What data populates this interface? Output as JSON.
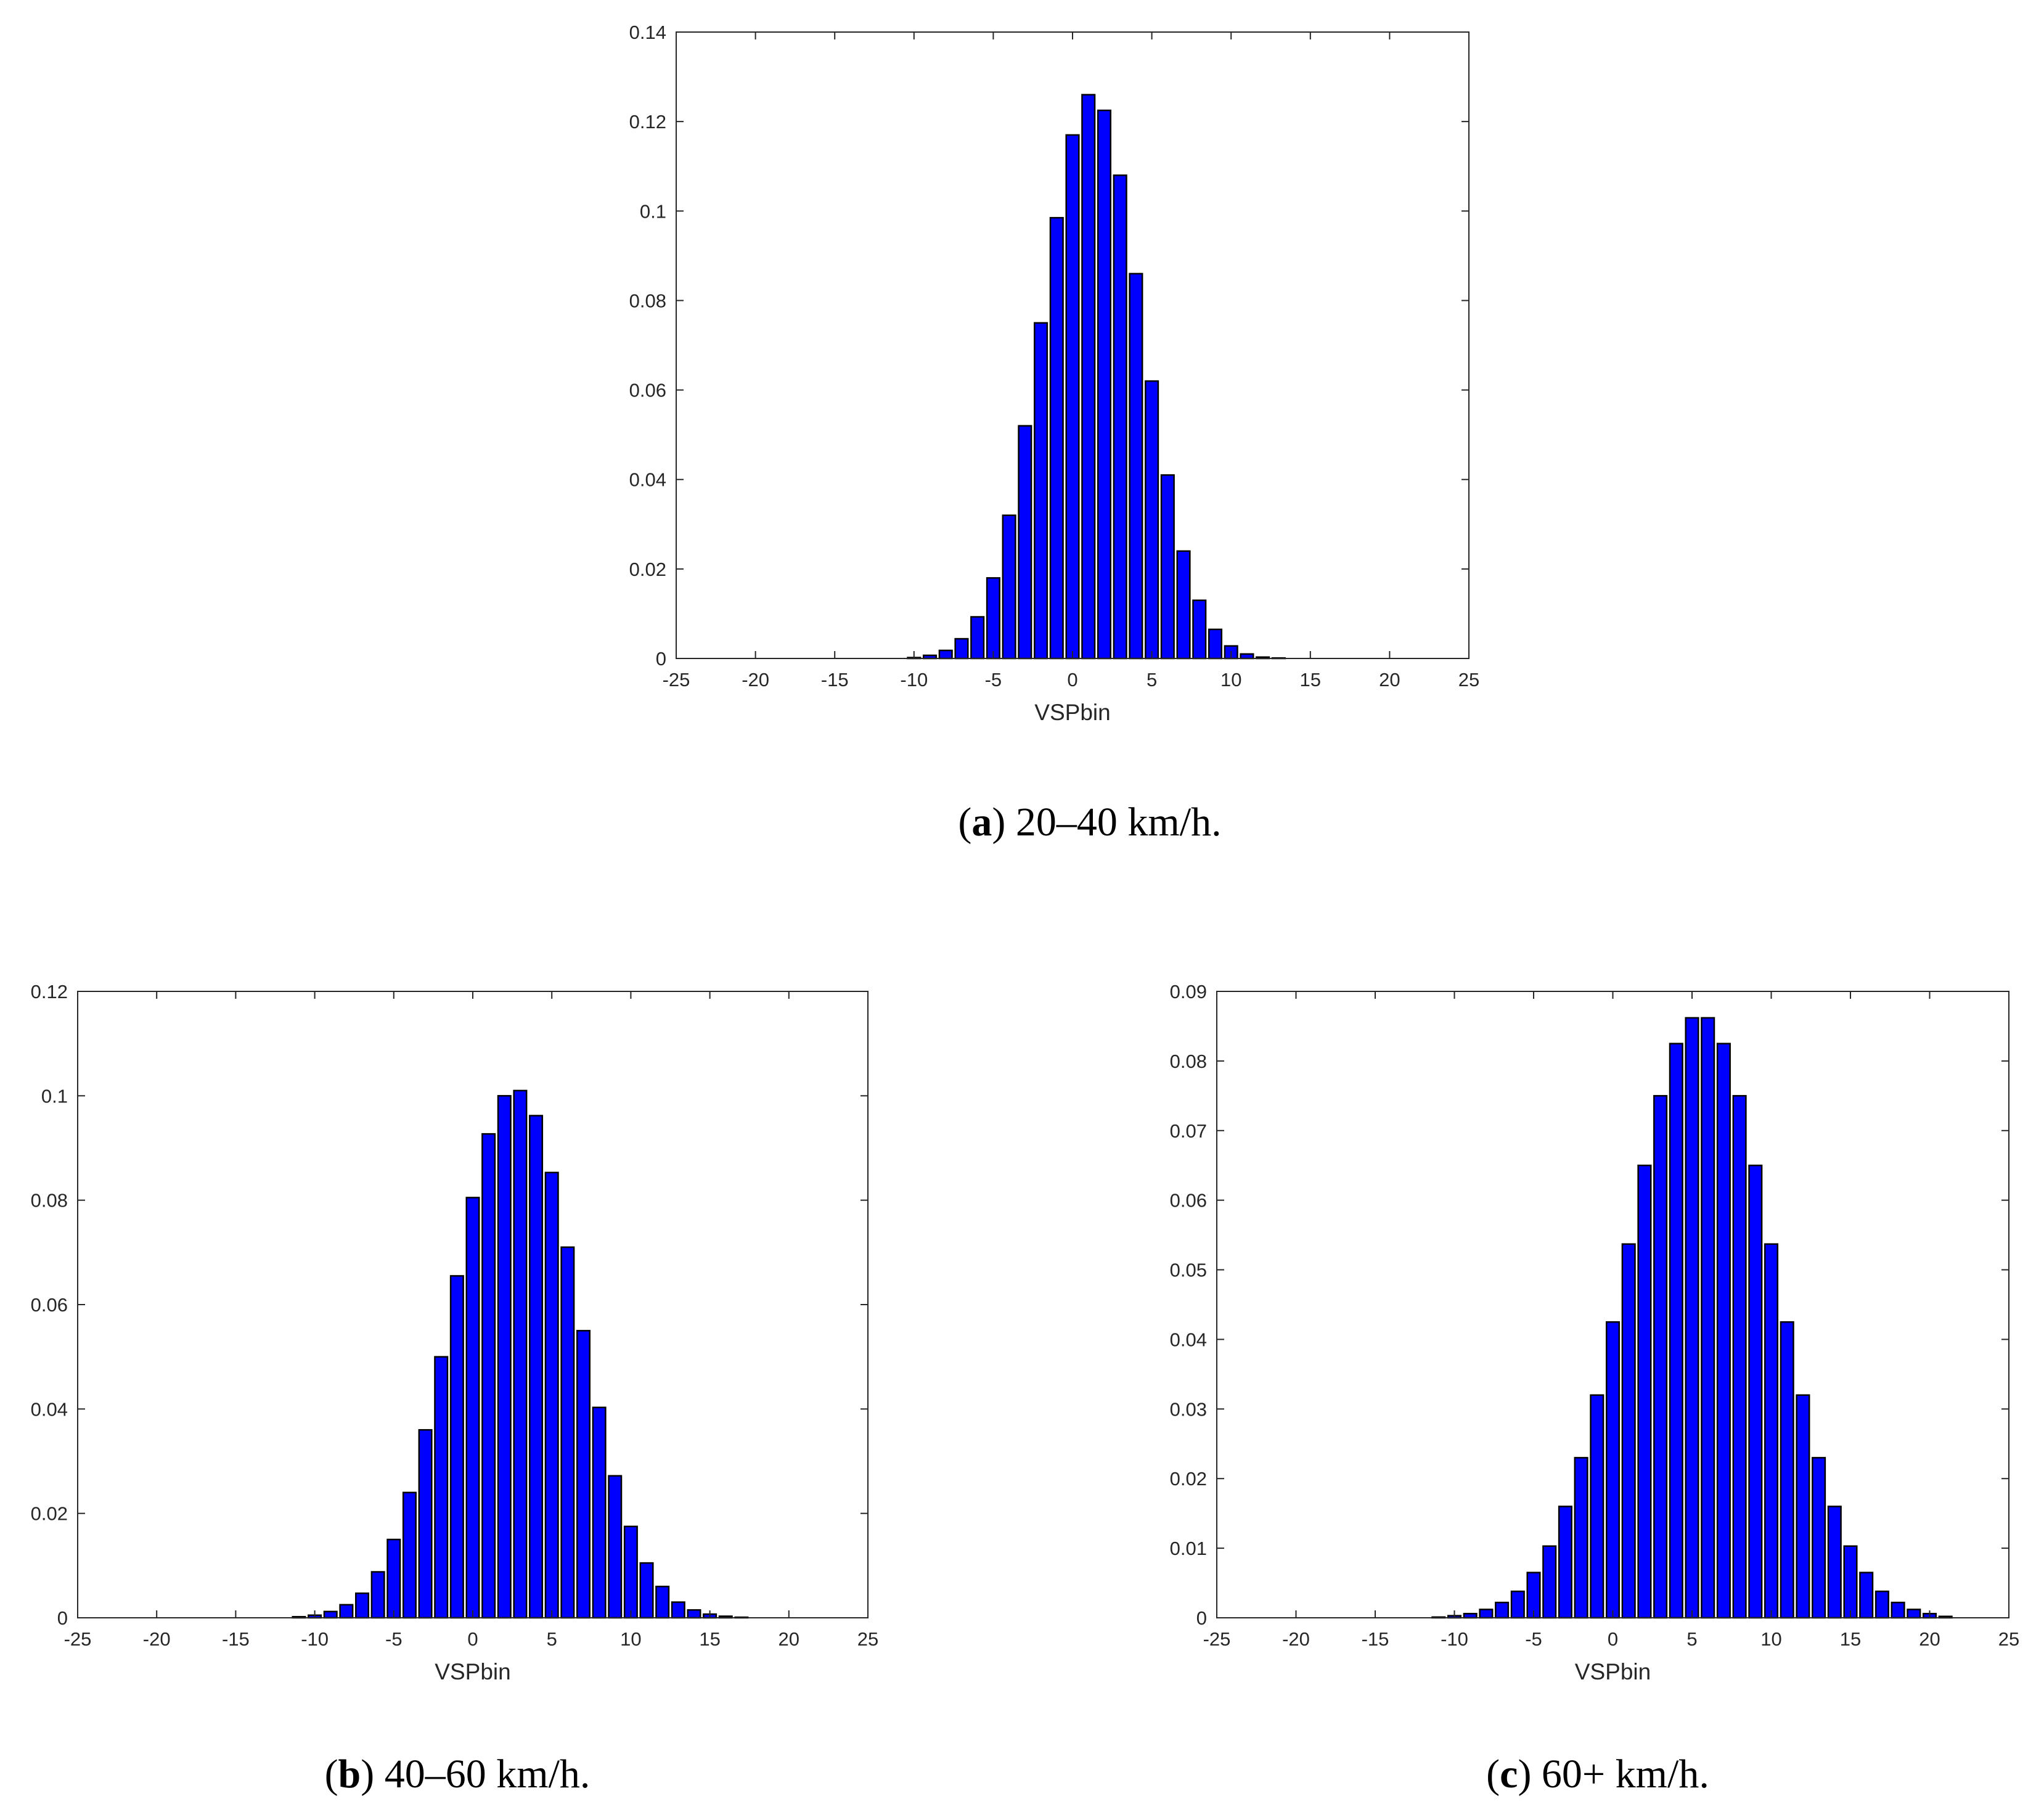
{
  "figure": {
    "panels": [
      {
        "caption": {
          "letter": "a",
          "text": "20–40 km/h."
        }
      },
      {
        "caption": {
          "letter": "b",
          "text": "40–60 km/h."
        }
      },
      {
        "caption": {
          "letter": "c",
          "text": "60+ km/h."
        }
      }
    ]
  },
  "colors": {
    "bar_fill": "#0000ff",
    "bar_edge": "#000000",
    "axes": "#262626",
    "background": "#ffffff"
  },
  "chart_data": [
    {
      "type": "bar",
      "title": "",
      "xlabel": "VSPbin",
      "ylabel": "",
      "xlim": [
        -25,
        25
      ],
      "ylim": [
        0,
        0.14
      ],
      "xticks": [
        -25,
        -20,
        -15,
        -10,
        -5,
        0,
        5,
        10,
        15,
        20,
        25
      ],
      "xtick_labels": [
        "-25",
        "-20",
        "-15",
        "-10",
        "-5",
        "0",
        "5",
        "10",
        "15",
        "20",
        "25"
      ],
      "yticks": [
        0,
        0.02,
        0.04,
        0.06,
        0.08,
        0.1,
        0.12,
        0.14
      ],
      "ytick_labels": [
        "0",
        "0.02",
        "0.04",
        "0.06",
        "0.08",
        "0.1",
        "0.12",
        "0.14"
      ],
      "grid": false,
      "legend": "none",
      "x": [
        -20,
        -19,
        -18,
        -17,
        -16,
        -15,
        -14,
        -13,
        -12,
        -11,
        -10,
        -9,
        -8,
        -7,
        -6,
        -5,
        -4,
        -3,
        -2,
        -1,
        0,
        1,
        2,
        3,
        4,
        5,
        6,
        7,
        8,
        9,
        10,
        11,
        12,
        13,
        14,
        15,
        16,
        17,
        18,
        19,
        20
      ],
      "values": [
        0,
        0,
        0,
        0,
        0,
        0,
        0,
        0,
        0,
        0,
        0.0002,
        0.0007,
        0.0018,
        0.0044,
        0.0093,
        0.018,
        0.032,
        0.052,
        0.075,
        0.0985,
        0.117,
        0.126,
        0.1225,
        0.108,
        0.086,
        0.062,
        0.041,
        0.024,
        0.013,
        0.0065,
        0.0028,
        0.001,
        0.0003,
        0.0001,
        0,
        0,
        0,
        0,
        0,
        0,
        0
      ]
    },
    {
      "type": "bar",
      "title": "",
      "xlabel": "VSPbin",
      "ylabel": "",
      "xlim": [
        -25,
        25
      ],
      "ylim": [
        0,
        0.12
      ],
      "xticks": [
        -25,
        -20,
        -15,
        -10,
        -5,
        0,
        5,
        10,
        15,
        20,
        25
      ],
      "xtick_labels": [
        "-25",
        "-20",
        "-15",
        "-10",
        "-5",
        "0",
        "5",
        "10",
        "15",
        "20",
        "25"
      ],
      "yticks": [
        0,
        0.02,
        0.04,
        0.06,
        0.08,
        0.1,
        0.12
      ],
      "ytick_labels": [
        "0",
        "0.02",
        "0.04",
        "0.06",
        "0.08",
        "0.1",
        "0.12"
      ],
      "grid": false,
      "legend": "none",
      "x": [
        -20,
        -19,
        -18,
        -17,
        -16,
        -15,
        -14,
        -13,
        -12,
        -11,
        -10,
        -9,
        -8,
        -7,
        -6,
        -5,
        -4,
        -3,
        -2,
        -1,
        0,
        1,
        2,
        3,
        4,
        5,
        6,
        7,
        8,
        9,
        10,
        11,
        12,
        13,
        14,
        15,
        16,
        17,
        18,
        19,
        20
      ],
      "values": [
        0,
        0,
        0,
        0,
        0,
        0,
        0,
        0,
        0,
        0.0002,
        0.0005,
        0.0012,
        0.0025,
        0.0047,
        0.0088,
        0.015,
        0.024,
        0.036,
        0.05,
        0.0655,
        0.0805,
        0.0927,
        0.1,
        0.101,
        0.0962,
        0.0853,
        0.071,
        0.055,
        0.0403,
        0.0272,
        0.0175,
        0.0105,
        0.006,
        0.003,
        0.0015,
        0.0007,
        0.0003,
        0.0001,
        0,
        0,
        0
      ]
    },
    {
      "type": "bar",
      "title": "",
      "xlabel": "VSPbin",
      "ylabel": "",
      "xlim": [
        -25,
        25
      ],
      "ylim": [
        0,
        0.09
      ],
      "xticks": [
        -25,
        -20,
        -15,
        -10,
        -5,
        0,
        5,
        10,
        15,
        20,
        25
      ],
      "xtick_labels": [
        "-25",
        "-20",
        "-15",
        "-10",
        "-5",
        "0",
        "5",
        "10",
        "15",
        "20",
        "25"
      ],
      "yticks": [
        0,
        0.01,
        0.02,
        0.03,
        0.04,
        0.05,
        0.06,
        0.07,
        0.08,
        0.09
      ],
      "ytick_labels": [
        "0",
        "0.01",
        "0.02",
        "0.03",
        "0.04",
        "0.05",
        "0.06",
        "0.07",
        "0.08",
        "0.09"
      ],
      "grid": false,
      "legend": "none",
      "x": [
        -20,
        -19,
        -18,
        -17,
        -16,
        -15,
        -14,
        -13,
        -12,
        -11,
        -10,
        -9,
        -8,
        -7,
        -6,
        -5,
        -4,
        -3,
        -2,
        -1,
        0,
        1,
        2,
        3,
        4,
        5,
        6,
        7,
        8,
        9,
        10,
        11,
        12,
        13,
        14,
        15,
        16,
        17,
        18,
        19,
        20,
        21,
        22
      ],
      "values": [
        0,
        0,
        0,
        0,
        0,
        0,
        0,
        0,
        0,
        0.0001,
        0.0003,
        0.0006,
        0.0012,
        0.0022,
        0.0038,
        0.0065,
        0.0103,
        0.016,
        0.023,
        0.032,
        0.0425,
        0.0537,
        0.065,
        0.075,
        0.0825,
        0.0862,
        0.0862,
        0.0825,
        0.075,
        0.065,
        0.0537,
        0.0425,
        0.032,
        0.023,
        0.016,
        0.0103,
        0.0065,
        0.0038,
        0.0022,
        0.0012,
        0.0006,
        0.0002,
        0
      ]
    }
  ]
}
